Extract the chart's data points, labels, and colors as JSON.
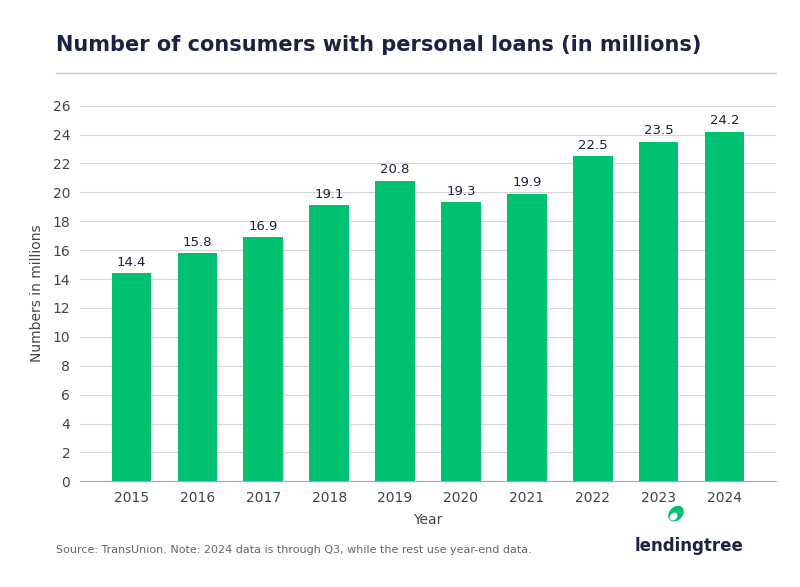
{
  "title": "Number of consumers with personal loans (in millions)",
  "years": [
    2015,
    2016,
    2017,
    2018,
    2019,
    2020,
    2021,
    2022,
    2023,
    2024
  ],
  "values": [
    14.4,
    15.8,
    16.9,
    19.1,
    20.8,
    19.3,
    19.9,
    22.5,
    23.5,
    24.2
  ],
  "bar_color": "#00C170",
  "xlabel": "Year",
  "ylabel": "Numbers in millions",
  "ylim": [
    0,
    26
  ],
  "yticks": [
    0,
    2,
    4,
    6,
    8,
    10,
    12,
    14,
    16,
    18,
    20,
    22,
    24,
    26
  ],
  "title_fontsize": 15,
  "label_fontsize": 10,
  "tick_fontsize": 10,
  "annotation_fontsize": 9.5,
  "footnote": "Source: TransUnion. Note: 2024 data is through Q3, while the rest use year-end data.",
  "background_color": "#ffffff",
  "grid_color": "#d5d5d5",
  "title_color": "#1a2340",
  "axis_label_color": "#444444",
  "tick_color": "#444444",
  "bar_width": 0.6,
  "logo_text": "lendingtree",
  "logo_text_color": "#1a2340",
  "logo_leaf_color": "#00C170",
  "footnote_color": "#666666"
}
